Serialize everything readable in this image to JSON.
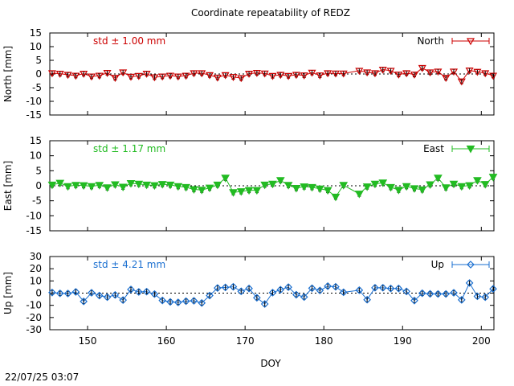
{
  "title": "Coordinate repeatability of REDZ",
  "timestamp": "22/07/25 03:07",
  "colors": {
    "north": "#cc0000",
    "east": "#22bb22",
    "up": "#1a6fd0",
    "errorbar": "#000000"
  },
  "chart_data": {
    "type": "line",
    "title": "Coordinate repeatability of REDZ",
    "xlabel": "DOY",
    "xlim": [
      145.2,
      201.6
    ],
    "xticks": [
      150,
      160,
      170,
      180,
      190,
      200
    ],
    "panels": [
      {
        "key": "north",
        "name": "North",
        "ylabel": "North [mm]",
        "ylim": [
          -15,
          15
        ],
        "yticks": [
          15,
          10,
          5,
          0,
          -5,
          -10,
          -15
        ],
        "std_label": "std ± 1.00 mm",
        "marker": "triangle-down-open",
        "series_points": [
          [
            145.5,
            0.3
          ],
          [
            146.5,
            0.1
          ],
          [
            147.5,
            -0.3
          ],
          [
            148.5,
            -0.6
          ],
          [
            149.5,
            0.1
          ],
          [
            150.5,
            -0.9
          ],
          [
            151.5,
            -0.6
          ],
          [
            152.5,
            0.4
          ],
          [
            153.5,
            -1.4
          ],
          [
            154.5,
            0.6
          ],
          [
            155.5,
            -1.0
          ],
          [
            156.5,
            -0.7
          ],
          [
            157.5,
            0.1
          ],
          [
            158.5,
            -1.2
          ],
          [
            159.5,
            -0.9
          ],
          [
            160.5,
            -0.6
          ],
          [
            161.5,
            -0.9
          ],
          [
            162.5,
            -0.6
          ],
          [
            163.5,
            0.3
          ],
          [
            164.5,
            0.3
          ],
          [
            165.5,
            -0.4
          ],
          [
            166.5,
            -1.3
          ],
          [
            167.5,
            -0.4
          ],
          [
            168.5,
            -1.1
          ],
          [
            169.5,
            -1.5
          ],
          [
            170.5,
            0.1
          ],
          [
            171.5,
            0.4
          ],
          [
            172.5,
            0.2
          ],
          [
            173.5,
            -0.7
          ],
          [
            174.5,
            -0.3
          ],
          [
            175.5,
            -0.7
          ],
          [
            176.5,
            -0.3
          ],
          [
            177.5,
            -0.5
          ],
          [
            178.5,
            0.5
          ],
          [
            179.5,
            -0.5
          ],
          [
            180.5,
            0.3
          ],
          [
            181.5,
            0.2
          ],
          [
            182.5,
            0.2
          ],
          [
            184.5,
            1.2
          ],
          [
            185.5,
            0.6
          ],
          [
            186.5,
            0.3
          ],
          [
            187.5,
            1.6
          ],
          [
            188.5,
            1.2
          ],
          [
            189.5,
            -0.2
          ],
          [
            190.5,
            0.3
          ],
          [
            191.5,
            -0.2
          ],
          [
            192.5,
            2.2
          ],
          [
            193.5,
            0.6
          ],
          [
            194.5,
            0.9
          ],
          [
            195.5,
            -1.4
          ],
          [
            196.5,
            0.9
          ],
          [
            197.5,
            -2.7
          ],
          [
            198.5,
            1.3
          ],
          [
            199.5,
            0.8
          ],
          [
            200.5,
            0.3
          ],
          [
            201.5,
            -0.6
          ]
        ]
      },
      {
        "key": "east",
        "name": "East",
        "ylabel": "East [mm]",
        "ylim": [
          -15,
          15
        ],
        "yticks": [
          15,
          10,
          5,
          0,
          -5,
          -10,
          -15
        ],
        "std_label": "std ± 1.17 mm",
        "marker": "triangle-down-filled",
        "series_points": [
          [
            145.5,
            0.3
          ],
          [
            146.5,
            0.9
          ],
          [
            147.5,
            -0.2
          ],
          [
            148.5,
            0.2
          ],
          [
            149.5,
            0.1
          ],
          [
            150.5,
            -0.2
          ],
          [
            151.5,
            0.2
          ],
          [
            152.5,
            -0.6
          ],
          [
            153.5,
            0.4
          ],
          [
            154.5,
            -0.4
          ],
          [
            155.5,
            0.8
          ],
          [
            156.5,
            0.6
          ],
          [
            157.5,
            0.3
          ],
          [
            158.5,
            0.1
          ],
          [
            159.5,
            0.5
          ],
          [
            160.5,
            0.3
          ],
          [
            161.5,
            -0.2
          ],
          [
            162.5,
            -0.5
          ],
          [
            163.5,
            -1.2
          ],
          [
            164.5,
            -1.4
          ],
          [
            165.5,
            -0.7
          ],
          [
            166.5,
            0.3
          ],
          [
            167.5,
            2.6
          ],
          [
            168.5,
            -2.2
          ],
          [
            169.5,
            -1.9
          ],
          [
            170.5,
            -1.5
          ],
          [
            171.5,
            -1.5
          ],
          [
            172.5,
            0.3
          ],
          [
            173.5,
            0.6
          ],
          [
            174.5,
            1.8
          ],
          [
            175.5,
            0.2
          ],
          [
            176.5,
            -0.8
          ],
          [
            177.5,
            -0.3
          ],
          [
            178.5,
            -0.5
          ],
          [
            179.5,
            -1.0
          ],
          [
            180.5,
            -1.5
          ],
          [
            181.5,
            -3.7
          ],
          [
            182.5,
            0.2
          ],
          [
            184.5,
            -2.7
          ],
          [
            185.5,
            -0.3
          ],
          [
            186.5,
            0.6
          ],
          [
            187.5,
            1.0
          ],
          [
            188.5,
            -0.5
          ],
          [
            189.5,
            -1.4
          ],
          [
            190.5,
            -0.2
          ],
          [
            191.5,
            -0.9
          ],
          [
            192.5,
            -1.3
          ],
          [
            193.5,
            0.4
          ],
          [
            194.5,
            2.6
          ],
          [
            195.5,
            -0.6
          ],
          [
            196.5,
            0.6
          ],
          [
            197.5,
            -0.2
          ],
          [
            198.5,
            0.1
          ],
          [
            199.5,
            1.8
          ],
          [
            200.5,
            0.5
          ],
          [
            201.5,
            2.9
          ]
        ]
      },
      {
        "key": "up",
        "name": "Up",
        "ylabel": "Up [mm]",
        "ylim": [
          -30,
          30
        ],
        "yticks": [
          30,
          20,
          10,
          0,
          -10,
          -20,
          -30
        ],
        "std_label": "std ± 4.21 mm",
        "marker": "diamond-open",
        "series_points": [
          [
            145.5,
            0.5
          ],
          [
            146.5,
            -0.2
          ],
          [
            147.5,
            -0.3
          ],
          [
            148.5,
            1.0
          ],
          [
            149.5,
            -6.8
          ],
          [
            150.5,
            0.3
          ],
          [
            151.5,
            -2.0
          ],
          [
            152.5,
            -3.3
          ],
          [
            153.5,
            -1.5
          ],
          [
            154.5,
            -5.7
          ],
          [
            155.5,
            3.0
          ],
          [
            156.5,
            1.0
          ],
          [
            157.5,
            1.2
          ],
          [
            158.5,
            -0.8
          ],
          [
            159.5,
            -6.0
          ],
          [
            160.5,
            -7.2
          ],
          [
            161.5,
            -7.6
          ],
          [
            162.5,
            -6.6
          ],
          [
            163.5,
            -6.3
          ],
          [
            164.5,
            -8.1
          ],
          [
            165.5,
            -2.0
          ],
          [
            166.5,
            4.2
          ],
          [
            167.5,
            4.7
          ],
          [
            168.5,
            5.2
          ],
          [
            169.5,
            1.5
          ],
          [
            170.5,
            3.8
          ],
          [
            171.5,
            -3.8
          ],
          [
            172.5,
            -8.9
          ],
          [
            173.5,
            0.4
          ],
          [
            174.5,
            2.8
          ],
          [
            175.5,
            4.9
          ],
          [
            176.5,
            -1.3
          ],
          [
            177.5,
            -3.2
          ],
          [
            178.5,
            4.0
          ],
          [
            179.5,
            2.2
          ],
          [
            180.5,
            5.7
          ],
          [
            181.5,
            5.2
          ],
          [
            182.5,
            0.7
          ],
          [
            184.5,
            2.4
          ],
          [
            185.5,
            -5.4
          ],
          [
            186.5,
            4.4
          ],
          [
            187.5,
            4.4
          ],
          [
            188.5,
            3.8
          ],
          [
            189.5,
            3.8
          ],
          [
            190.5,
            1.4
          ],
          [
            191.5,
            -6.1
          ],
          [
            192.5,
            -0.1
          ],
          [
            193.5,
            -0.6
          ],
          [
            194.5,
            -0.7
          ],
          [
            195.5,
            -0.7
          ],
          [
            196.5,
            0.3
          ],
          [
            197.5,
            -5.5
          ],
          [
            198.5,
            8.3
          ],
          [
            199.5,
            -2.6
          ],
          [
            200.5,
            -3.3
          ],
          [
            201.5,
            3.5
          ]
        ]
      }
    ]
  }
}
